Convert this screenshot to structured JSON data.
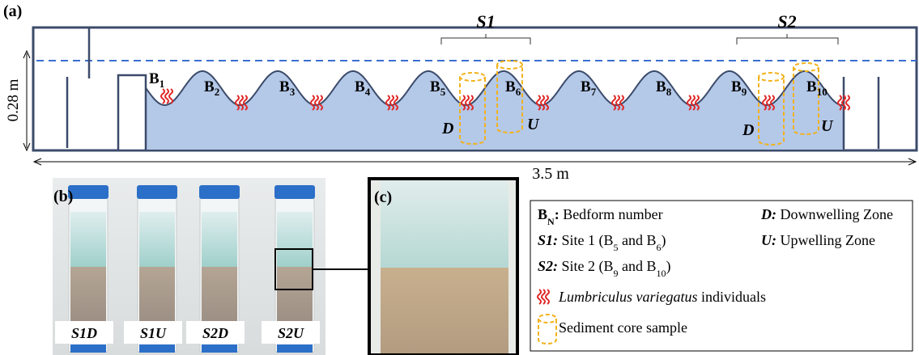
{
  "panel_a": {
    "label": "(a)",
    "sites": [
      "S1",
      "S2"
    ],
    "height": "0.28 m",
    "length": "3.5 m",
    "bedforms": [
      {
        "letter": "B",
        "sub": "1"
      },
      {
        "letter": "B",
        "sub": "2"
      },
      {
        "letter": "B",
        "sub": "3"
      },
      {
        "letter": "B",
        "sub": "4"
      },
      {
        "letter": "B",
        "sub": "5"
      },
      {
        "letter": "B",
        "sub": "6"
      },
      {
        "letter": "B",
        "sub": "7"
      },
      {
        "letter": "B",
        "sub": "8"
      },
      {
        "letter": "B",
        "sub": "9"
      },
      {
        "letter": "B",
        "sub": "10"
      }
    ],
    "zones": [
      "D",
      "U",
      "D",
      "U"
    ]
  },
  "panel_b": {
    "label": "(b)",
    "tubes": [
      "S1D",
      "S1U",
      "S2D",
      "S2U"
    ]
  },
  "panel_c": {
    "label": "(c)"
  },
  "legend": {
    "items": [
      {
        "runs": [
          {
            "t": "B",
            "style": "bold"
          },
          {
            "t": "N",
            "style": "bold-sub"
          },
          {
            "t": ":",
            "style": "bold"
          },
          {
            "t": " Bedform number",
            "style": "normal"
          }
        ]
      },
      {
        "runs": [
          {
            "t": "D:",
            "style": "bold-italic"
          },
          {
            "t": " Downwelling Zone",
            "style": "normal"
          }
        ]
      },
      {
        "runs": [
          {
            "t": "S1:",
            "style": "bold-italic"
          },
          {
            "t": " Site 1 (B",
            "style": "normal"
          },
          {
            "t": "5",
            "style": "sub"
          },
          {
            "t": " and B",
            "style": "normal"
          },
          {
            "t": "6",
            "style": "sub"
          },
          {
            "t": ")",
            "style": "normal"
          }
        ]
      },
      {
        "runs": [
          {
            "t": "U:",
            "style": "bold-italic"
          },
          {
            "t": " Upwelling Zone",
            "style": "normal"
          }
        ]
      },
      {
        "runs": [
          {
            "t": "S2:",
            "style": "bold-italic"
          },
          {
            "t": " Site 2 (B",
            "style": "normal"
          },
          {
            "t": "9",
            "style": "sub"
          },
          {
            "t": " and B",
            "style": "normal"
          },
          {
            "t": "10",
            "style": "sub"
          },
          {
            "t": ")",
            "style": "normal"
          }
        ]
      },
      {
        "runs": [
          {
            "t": "Lumbriculus variegatus",
            "style": "italic"
          },
          {
            "t": " individuals",
            "style": "normal"
          }
        ]
      },
      {
        "runs": [
          {
            "t": "Sediment core sample",
            "style": "normal"
          }
        ]
      }
    ]
  }
}
